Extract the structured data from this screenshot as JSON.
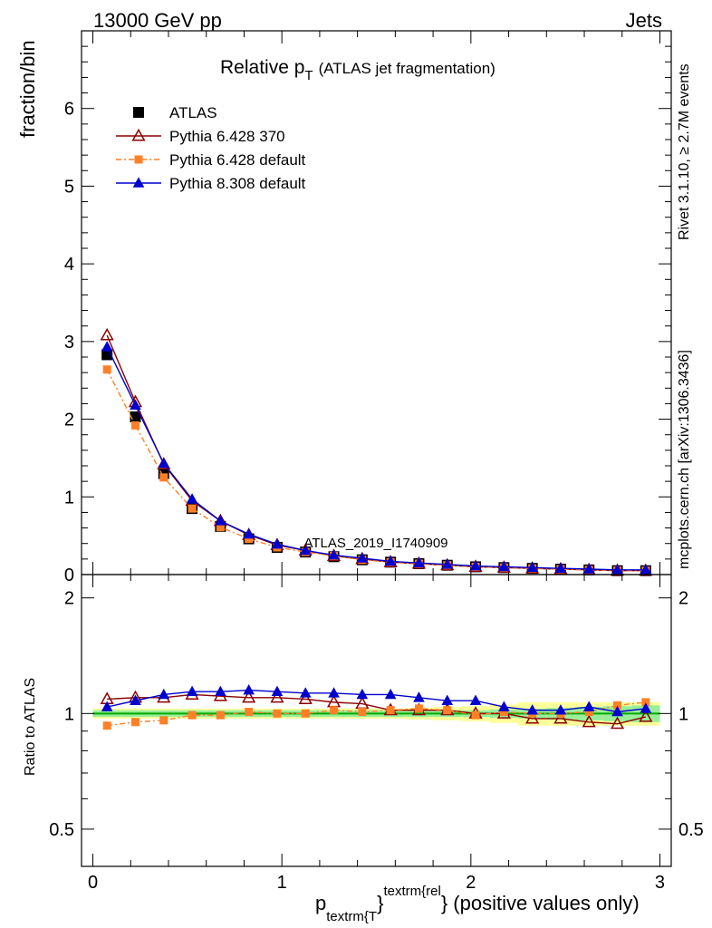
{
  "header": {
    "left": "13000 GeV pp",
    "right": "Jets"
  },
  "title": {
    "main": "Relative p",
    "main_sub": "T",
    "paren": "(ATLAS jet fragmentation)"
  },
  "side_labels": {
    "rivet": "Rivet 3.1.10, ≥ 2.7M events",
    "mcplots": "mcplots.cern.ch [arXiv:1306.3436]"
  },
  "watermark": "ATLAS_2019_I1740909",
  "axes": {
    "top_ylabel": "fraction/bin",
    "bottom_ylabel": "Ratio to ATLAS",
    "xlabel_p": "p",
    "xlabel_sub": "textrm{T",
    "xlabel_brace": "}",
    "xlabel_sup": "textrm{rel",
    "xlabel_rest": "} (positive values only)",
    "top_yticks": [
      "0",
      "1",
      "2",
      "3",
      "4",
      "5",
      "6"
    ],
    "bottom_yticks": [
      "0.5",
      "1",
      "2"
    ],
    "xticks": [
      "0",
      "1",
      "2",
      "3"
    ]
  },
  "chart_data": {
    "type": "line",
    "x": [
      0.075,
      0.225,
      0.375,
      0.525,
      0.675,
      0.825,
      0.975,
      1.125,
      1.275,
      1.425,
      1.575,
      1.725,
      1.875,
      2.025,
      2.175,
      2.325,
      2.475,
      2.625,
      2.775,
      2.925
    ],
    "xlim": [
      -0.06,
      3.06
    ],
    "main_ylim": [
      0,
      7
    ],
    "ratio_ylim": [
      0.4,
      2.3
    ],
    "ratio_log": true,
    "series": [
      {
        "name": "ATLAS",
        "color": "#000000",
        "marker": "square",
        "values": [
          2.83,
          2.03,
          1.3,
          0.85,
          0.62,
          0.46,
          0.35,
          0.29,
          0.23,
          0.19,
          0.16,
          0.14,
          0.12,
          0.1,
          0.09,
          0.08,
          0.07,
          0.06,
          0.05,
          0.05
        ],
        "ratio": [
          1.0,
          1.0,
          1.0,
          1.0,
          1.0,
          1.0,
          1.0,
          1.0,
          1.0,
          1.0,
          1.0,
          1.0,
          1.0,
          1.0,
          1.0,
          1.0,
          1.0,
          1.0,
          1.0,
          1.0
        ],
        "band_inner": [
          0.02,
          0.02,
          0.02,
          0.02,
          0.02,
          0.02,
          0.02,
          0.02,
          0.02,
          0.02,
          0.02,
          0.02,
          0.02,
          0.02,
          0.025,
          0.03,
          0.035,
          0.04,
          0.045,
          0.05
        ],
        "band_outer": [
          0.03,
          0.03,
          0.03,
          0.03,
          0.03,
          0.03,
          0.03,
          0.03,
          0.03,
          0.03,
          0.03,
          0.035,
          0.04,
          0.045,
          0.055,
          0.07,
          0.07,
          0.07,
          0.07,
          0.07
        ]
      },
      {
        "name": "Pythia 6.428 370",
        "color": "#8b0000",
        "marker": "open-triangle",
        "values": [
          3.08,
          2.22,
          1.42,
          0.95,
          0.69,
          0.51,
          0.38,
          0.31,
          0.24,
          0.2,
          0.16,
          0.14,
          0.12,
          0.1,
          0.09,
          0.08,
          0.07,
          0.06,
          0.05,
          0.05
        ],
        "ratio": [
          1.09,
          1.1,
          1.1,
          1.12,
          1.11,
          1.1,
          1.1,
          1.09,
          1.07,
          1.06,
          1.02,
          1.02,
          1.02,
          1.0,
          1.0,
          0.97,
          0.97,
          0.95,
          0.94,
          0.98
        ]
      },
      {
        "name": "Pythia 6.428 default",
        "color": "#ff7f27",
        "marker": "filled-square-small",
        "dashed": true,
        "values": [
          2.64,
          1.92,
          1.25,
          0.85,
          0.61,
          0.46,
          0.35,
          0.29,
          0.24,
          0.19,
          0.16,
          0.14,
          0.12,
          0.1,
          0.09,
          0.08,
          0.07,
          0.06,
          0.05,
          0.05
        ],
        "ratio": [
          0.93,
          0.95,
          0.96,
          0.99,
          0.99,
          1.01,
          1.0,
          1.0,
          1.02,
          1.01,
          1.02,
          1.03,
          1.02,
          0.99,
          1.01,
          1.0,
          1.0,
          1.01,
          1.05,
          1.07
        ]
      },
      {
        "name": "Pythia 8.308 default",
        "color": "#0000cd",
        "marker": "filled-triangle",
        "values": [
          2.93,
          2.18,
          1.43,
          0.97,
          0.69,
          0.52,
          0.39,
          0.31,
          0.25,
          0.21,
          0.17,
          0.15,
          0.13,
          0.11,
          0.1,
          0.09,
          0.08,
          0.07,
          0.06,
          0.06
        ],
        "ratio": [
          1.04,
          1.08,
          1.12,
          1.14,
          1.14,
          1.15,
          1.14,
          1.13,
          1.13,
          1.12,
          1.12,
          1.1,
          1.08,
          1.08,
          1.04,
          1.02,
          1.02,
          1.04,
          1.01,
          1.03
        ]
      }
    ]
  }
}
